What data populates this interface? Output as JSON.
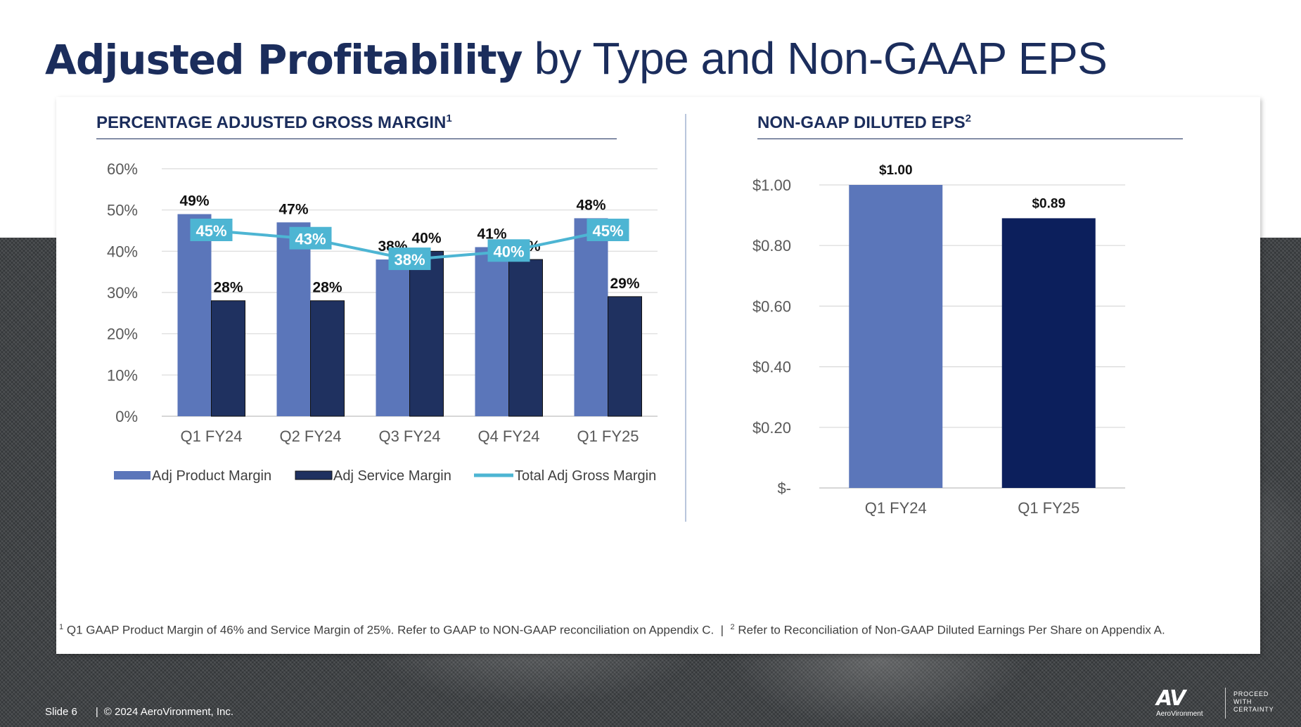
{
  "title": {
    "bold": "Adjusted Profitability",
    "regular": "by Type and Non-GAAP EPS"
  },
  "left_chart": {
    "heading": "PERCENTAGE ADJUSTED GROSS MARGIN",
    "heading_sup": "1"
  },
  "right_chart": {
    "heading": "NON-GAAP DILUTED EPS",
    "heading_sup": "2"
  },
  "colors": {
    "product": "#5b76ba",
    "service": "#1f3160",
    "total": "#4db5d3",
    "eps_q1fy24": "#5b76ba",
    "eps_q1fy25": "#0c1f5c",
    "title": "#1b2d5c"
  },
  "chart_data": [
    {
      "type": "bar",
      "categories": [
        "Q1 FY24",
        "Q2 FY24",
        "Q3 FY24",
        "Q4 FY24",
        "Q1 FY25"
      ],
      "series": [
        {
          "name": "Adj Product Margin",
          "type": "bar",
          "values": [
            49,
            47,
            38,
            41,
            48
          ],
          "labels": [
            "49%",
            "47%",
            "38%",
            "41%",
            "48%"
          ]
        },
        {
          "name": "Adj Service Margin",
          "type": "bar",
          "values": [
            28,
            28,
            40,
            38,
            29
          ],
          "labels": [
            "28%",
            "28%",
            "40%",
            "38%",
            "29%"
          ]
        },
        {
          "name": "Total Adj Gross Margin",
          "type": "line",
          "values": [
            45,
            43,
            38,
            40,
            45
          ],
          "labels": [
            "45%",
            "43%",
            "38%",
            "40%",
            "45%"
          ]
        }
      ],
      "yticks": [
        "0%",
        "10%",
        "20%",
        "30%",
        "40%",
        "50%",
        "60%"
      ],
      "ylim": [
        0,
        60
      ],
      "grid": true,
      "legend": "bottom"
    },
    {
      "type": "bar",
      "categories": [
        "Q1 FY24",
        "Q1 FY25"
      ],
      "values": [
        1.0,
        0.89
      ],
      "labels": [
        "$1.00",
        "$0.89"
      ],
      "yticks": [
        "$-",
        "$0.20",
        "$0.40",
        "$0.60",
        "$0.80",
        "$1.00"
      ],
      "ylim": [
        0,
        1.0
      ],
      "grid": true
    }
  ],
  "footnote": {
    "sup1": "1",
    "text1": "Q1 GAAP Product Margin of 46% and Service Margin of 25%. Refer to GAAP to NON-GAAP reconciliation on Appendix C.",
    "separator": "|",
    "sup2": "2",
    "text2": "Refer to Reconciliation of Non-GAAP Diluted Earnings Per Share on Appendix A."
  },
  "footer": {
    "slide": "Slide 6",
    "separator": "|",
    "copyright": "© 2024 AeroVironment, Inc."
  },
  "logo": {
    "mark": "AV",
    "name": "AeroVironment",
    "tagline": [
      "PROCEED",
      "WITH",
      "CERTAINTY"
    ]
  }
}
